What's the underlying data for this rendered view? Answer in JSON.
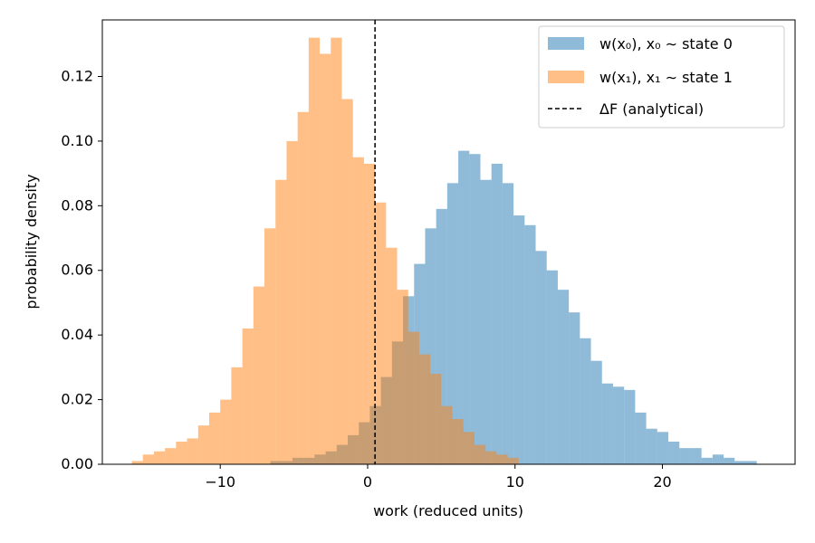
{
  "chart_data": {
    "type": "histogram",
    "xlabel": "work (reduced units)",
    "ylabel": "probability density",
    "xlim": [
      -18,
      29
    ],
    "ylim": [
      0,
      0.1375
    ],
    "x_ticks": [
      -10,
      0,
      10,
      20
    ],
    "x_tick_labels": [
      "−10",
      "0",
      "10",
      "20"
    ],
    "y_ticks": [
      0.0,
      0.02,
      0.04,
      0.06,
      0.08,
      0.1,
      0.12
    ],
    "y_tick_labels": [
      "0.00",
      "0.02",
      "0.04",
      "0.06",
      "0.08",
      "0.10",
      "0.12"
    ],
    "grid": false,
    "legend_placement": "top-right",
    "series": [
      {
        "name": "w(x₀), x₀ ∼ state 0",
        "color": "#1f77b4",
        "alpha": 0.5,
        "bins": [
          {
            "x0": -6.6,
            "x1": -5.85,
            "y": 0.001
          },
          {
            "x0": -5.85,
            "x1": -5.1,
            "y": 0.001
          },
          {
            "x0": -5.1,
            "x1": -4.35,
            "y": 0.002
          },
          {
            "x0": -4.35,
            "x1": -3.6,
            "y": 0.002
          },
          {
            "x0": -3.6,
            "x1": -2.85,
            "y": 0.003
          },
          {
            "x0": -2.85,
            "x1": -2.1,
            "y": 0.004
          },
          {
            "x0": -2.1,
            "x1": -1.35,
            "y": 0.006
          },
          {
            "x0": -1.35,
            "x1": -0.6,
            "y": 0.009
          },
          {
            "x0": -0.6,
            "x1": 0.15,
            "y": 0.013
          },
          {
            "x0": 0.15,
            "x1": 0.9,
            "y": 0.018
          },
          {
            "x0": 0.9,
            "x1": 1.65,
            "y": 0.027
          },
          {
            "x0": 1.65,
            "x1": 2.4,
            "y": 0.038
          },
          {
            "x0": 2.4,
            "x1": 3.15,
            "y": 0.052
          },
          {
            "x0": 3.15,
            "x1": 3.9,
            "y": 0.062
          },
          {
            "x0": 3.9,
            "x1": 4.65,
            "y": 0.073
          },
          {
            "x0": 4.65,
            "x1": 5.4,
            "y": 0.079
          },
          {
            "x0": 5.4,
            "x1": 6.15,
            "y": 0.087
          },
          {
            "x0": 6.15,
            "x1": 6.9,
            "y": 0.097
          },
          {
            "x0": 6.9,
            "x1": 7.65,
            "y": 0.096
          },
          {
            "x0": 7.65,
            "x1": 8.4,
            "y": 0.088
          },
          {
            "x0": 8.4,
            "x1": 9.15,
            "y": 0.093
          },
          {
            "x0": 9.15,
            "x1": 9.9,
            "y": 0.087
          },
          {
            "x0": 9.9,
            "x1": 10.65,
            "y": 0.077
          },
          {
            "x0": 10.65,
            "x1": 11.4,
            "y": 0.074
          },
          {
            "x0": 11.4,
            "x1": 12.15,
            "y": 0.066
          },
          {
            "x0": 12.15,
            "x1": 12.9,
            "y": 0.06
          },
          {
            "x0": 12.9,
            "x1": 13.65,
            "y": 0.054
          },
          {
            "x0": 13.65,
            "x1": 14.4,
            "y": 0.047
          },
          {
            "x0": 14.4,
            "x1": 15.15,
            "y": 0.039
          },
          {
            "x0": 15.15,
            "x1": 15.9,
            "y": 0.032
          },
          {
            "x0": 15.9,
            "x1": 16.65,
            "y": 0.025
          },
          {
            "x0": 16.65,
            "x1": 17.4,
            "y": 0.024
          },
          {
            "x0": 17.4,
            "x1": 18.15,
            "y": 0.023
          },
          {
            "x0": 18.15,
            "x1": 18.9,
            "y": 0.016
          },
          {
            "x0": 18.9,
            "x1": 19.65,
            "y": 0.011
          },
          {
            "x0": 19.65,
            "x1": 20.4,
            "y": 0.01
          },
          {
            "x0": 20.4,
            "x1": 21.15,
            "y": 0.007
          },
          {
            "x0": 21.15,
            "x1": 21.9,
            "y": 0.005
          },
          {
            "x0": 21.9,
            "x1": 22.65,
            "y": 0.005
          },
          {
            "x0": 22.65,
            "x1": 23.4,
            "y": 0.002
          },
          {
            "x0": 23.4,
            "x1": 24.15,
            "y": 0.003
          },
          {
            "x0": 24.15,
            "x1": 24.9,
            "y": 0.002
          },
          {
            "x0": 24.9,
            "x1": 25.65,
            "y": 0.001
          },
          {
            "x0": 25.65,
            "x1": 26.4,
            "y": 0.001
          }
        ]
      },
      {
        "name": "w(x₁), x₁ ∼ state 1",
        "color": "#ff7f0e",
        "alpha": 0.5,
        "bins": [
          {
            "x0": -16.0,
            "x1": -15.25,
            "y": 0.001
          },
          {
            "x0": -15.25,
            "x1": -14.5,
            "y": 0.003
          },
          {
            "x0": -14.5,
            "x1": -13.75,
            "y": 0.004
          },
          {
            "x0": -13.75,
            "x1": -13.0,
            "y": 0.005
          },
          {
            "x0": -13.0,
            "x1": -12.25,
            "y": 0.007
          },
          {
            "x0": -12.25,
            "x1": -11.5,
            "y": 0.008
          },
          {
            "x0": -11.5,
            "x1": -10.75,
            "y": 0.012
          },
          {
            "x0": -10.75,
            "x1": -10.0,
            "y": 0.016
          },
          {
            "x0": -10.0,
            "x1": -9.25,
            "y": 0.02
          },
          {
            "x0": -9.25,
            "x1": -8.5,
            "y": 0.03
          },
          {
            "x0": -8.5,
            "x1": -7.75,
            "y": 0.042
          },
          {
            "x0": -7.75,
            "x1": -7.0,
            "y": 0.055
          },
          {
            "x0": -7.0,
            "x1": -6.25,
            "y": 0.073
          },
          {
            "x0": -6.25,
            "x1": -5.5,
            "y": 0.088
          },
          {
            "x0": -5.5,
            "x1": -4.75,
            "y": 0.1
          },
          {
            "x0": -4.75,
            "x1": -4.0,
            "y": 0.109
          },
          {
            "x0": -4.0,
            "x1": -3.25,
            "y": 0.132
          },
          {
            "x0": -3.25,
            "x1": -2.5,
            "y": 0.127
          },
          {
            "x0": -2.5,
            "x1": -1.75,
            "y": 0.132
          },
          {
            "x0": -1.75,
            "x1": -1.0,
            "y": 0.113
          },
          {
            "x0": -1.0,
            "x1": -0.25,
            "y": 0.095
          },
          {
            "x0": -0.25,
            "x1": 0.5,
            "y": 0.093
          },
          {
            "x0": 0.5,
            "x1": 1.25,
            "y": 0.081
          },
          {
            "x0": 1.25,
            "x1": 2.0,
            "y": 0.067
          },
          {
            "x0": 2.0,
            "x1": 2.75,
            "y": 0.054
          },
          {
            "x0": 2.75,
            "x1": 3.5,
            "y": 0.041
          },
          {
            "x0": 3.5,
            "x1": 4.25,
            "y": 0.034
          },
          {
            "x0": 4.25,
            "x1": 5.0,
            "y": 0.028
          },
          {
            "x0": 5.0,
            "x1": 5.75,
            "y": 0.018
          },
          {
            "x0": 5.75,
            "x1": 6.5,
            "y": 0.014
          },
          {
            "x0": 6.5,
            "x1": 7.25,
            "y": 0.01
          },
          {
            "x0": 7.25,
            "x1": 8.0,
            "y": 0.006
          },
          {
            "x0": 8.0,
            "x1": 8.75,
            "y": 0.004
          },
          {
            "x0": 8.75,
            "x1": 9.5,
            "y": 0.003
          },
          {
            "x0": 9.5,
            "x1": 10.25,
            "y": 0.002
          }
        ]
      }
    ],
    "reference_line": {
      "name": "ΔF (analytical)",
      "x": 0.5,
      "style": "dashed",
      "color": "#000000"
    }
  }
}
